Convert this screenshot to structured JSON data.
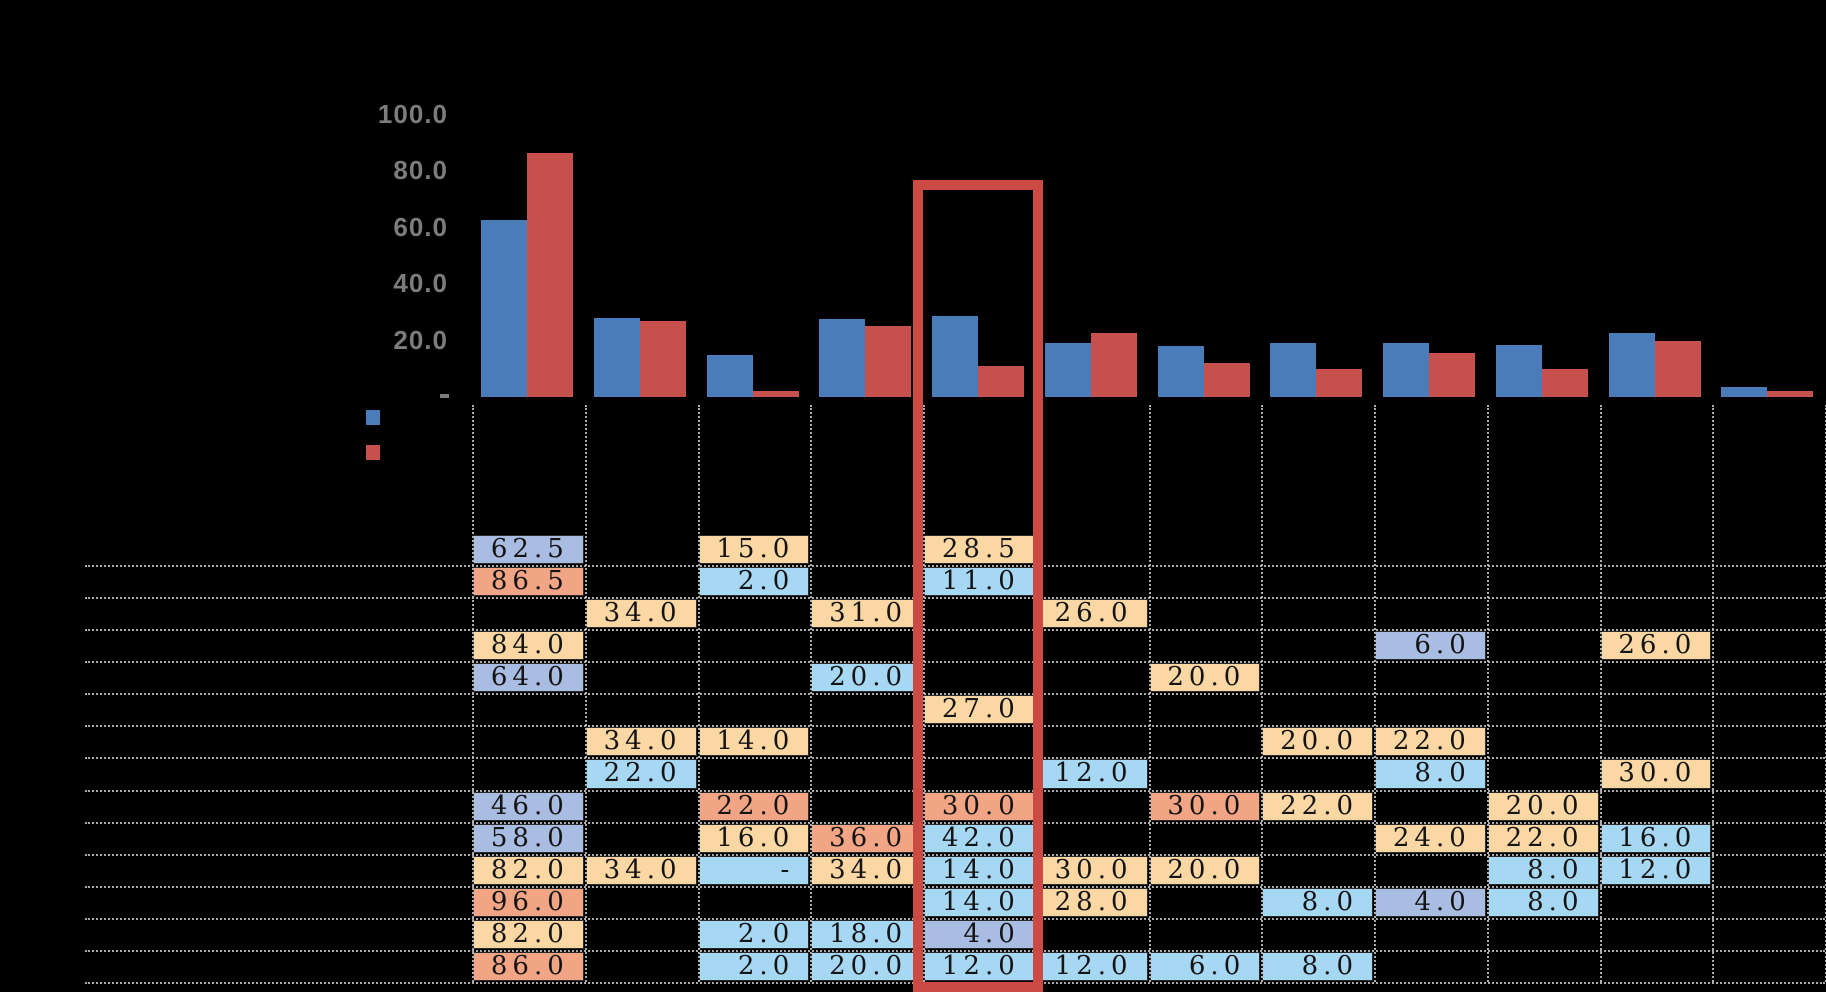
{
  "chart_data": {
    "type": "bar",
    "title": "",
    "categories": [
      "",
      "",
      "",
      "",
      "",
      "",
      "",
      "",
      "",
      "",
      "",
      ""
    ],
    "series": [
      {
        "name": "series-blue",
        "color": "#4b7cba",
        "values": [
          62.5,
          28.0,
          15.0,
          27.5,
          28.5,
          19.0,
          18.0,
          19.0,
          19.0,
          18.5,
          22.5,
          3.5
        ]
      },
      {
        "name": "series-red",
        "color": "#c6504d",
        "values": [
          86.5,
          27.0,
          2.0,
          25.0,
          11.0,
          22.5,
          12.0,
          10.0,
          15.5,
          10.0,
          20.0,
          2.0
        ]
      }
    ],
    "ylim": [
      0,
      100
    ],
    "y_ticks": [
      100,
      80,
      60,
      40,
      20
    ],
    "y_tick_labels": [
      "100.0",
      "80.0",
      "60.0",
      "40.0",
      "20.0"
    ],
    "zero_tick_label": "-",
    "grid": false,
    "legend_position": "left-below-axis",
    "highlighted_category_index": 4,
    "highlight_color": "#cb4a43"
  },
  "legend": {
    "items": [
      {
        "name": "blue-series-swatch",
        "color": "#4b7cba",
        "label": ""
      },
      {
        "name": "red-series-swatch",
        "color": "#c6504d",
        "label": ""
      }
    ]
  },
  "table": {
    "n_rows": 14,
    "n_cols": 12,
    "palette": {
      "periwinkle": "#a9bce2",
      "salmon": "#f2a585",
      "orange": "#fbd7a3",
      "sky": "#a6d7f3"
    },
    "cells": [
      {
        "r": 0,
        "c": 0,
        "v": "62.5",
        "k": "periwinkle"
      },
      {
        "r": 0,
        "c": 2,
        "v": "15.0",
        "k": "orange"
      },
      {
        "r": 0,
        "c": 4,
        "v": "28.5",
        "k": "orange"
      },
      {
        "r": 1,
        "c": 0,
        "v": "86.5",
        "k": "salmon"
      },
      {
        "r": 1,
        "c": 2,
        "v": "2.0",
        "k": "sky"
      },
      {
        "r": 1,
        "c": 4,
        "v": "11.0",
        "k": "sky"
      },
      {
        "r": 2,
        "c": 1,
        "v": "34.0",
        "k": "orange"
      },
      {
        "r": 2,
        "c": 3,
        "v": "31.0",
        "k": "orange"
      },
      {
        "r": 2,
        "c": 5,
        "v": "26.0",
        "k": "orange"
      },
      {
        "r": 3,
        "c": 0,
        "v": "84.0",
        "k": "orange"
      },
      {
        "r": 3,
        "c": 8,
        "v": "6.0",
        "k": "periwinkle"
      },
      {
        "r": 3,
        "c": 10,
        "v": "26.0",
        "k": "orange"
      },
      {
        "r": 4,
        "c": 0,
        "v": "64.0",
        "k": "periwinkle"
      },
      {
        "r": 4,
        "c": 3,
        "v": "20.0",
        "k": "sky"
      },
      {
        "r": 4,
        "c": 6,
        "v": "20.0",
        "k": "orange"
      },
      {
        "r": 5,
        "c": 4,
        "v": "27.0",
        "k": "orange"
      },
      {
        "r": 6,
        "c": 1,
        "v": "34.0",
        "k": "orange"
      },
      {
        "r": 6,
        "c": 2,
        "v": "14.0",
        "k": "orange"
      },
      {
        "r": 6,
        "c": 7,
        "v": "20.0",
        "k": "orange"
      },
      {
        "r": 6,
        "c": 8,
        "v": "22.0",
        "k": "orange"
      },
      {
        "r": 7,
        "c": 1,
        "v": "22.0",
        "k": "sky"
      },
      {
        "r": 7,
        "c": 5,
        "v": "12.0",
        "k": "sky"
      },
      {
        "r": 7,
        "c": 8,
        "v": "8.0",
        "k": "sky"
      },
      {
        "r": 7,
        "c": 10,
        "v": "30.0",
        "k": "orange"
      },
      {
        "r": 8,
        "c": 0,
        "v": "46.0",
        "k": "periwinkle"
      },
      {
        "r": 8,
        "c": 2,
        "v": "22.0",
        "k": "salmon"
      },
      {
        "r": 8,
        "c": 4,
        "v": "30.0",
        "k": "salmon"
      },
      {
        "r": 8,
        "c": 6,
        "v": "30.0",
        "k": "salmon"
      },
      {
        "r": 8,
        "c": 7,
        "v": "22.0",
        "k": "orange"
      },
      {
        "r": 8,
        "c": 9,
        "v": "20.0",
        "k": "orange"
      },
      {
        "r": 9,
        "c": 0,
        "v": "58.0",
        "k": "periwinkle"
      },
      {
        "r": 9,
        "c": 2,
        "v": "16.0",
        "k": "orange"
      },
      {
        "r": 9,
        "c": 3,
        "v": "36.0",
        "k": "salmon"
      },
      {
        "r": 9,
        "c": 4,
        "v": "42.0",
        "k": "sky"
      },
      {
        "r": 9,
        "c": 8,
        "v": "24.0",
        "k": "orange"
      },
      {
        "r": 9,
        "c": 9,
        "v": "22.0",
        "k": "orange"
      },
      {
        "r": 9,
        "c": 10,
        "v": "16.0",
        "k": "sky"
      },
      {
        "r": 10,
        "c": 0,
        "v": "82.0",
        "k": "orange"
      },
      {
        "r": 10,
        "c": 1,
        "v": "34.0",
        "k": "orange"
      },
      {
        "r": 10,
        "c": 2,
        "v": "-",
        "k": "sky"
      },
      {
        "r": 10,
        "c": 3,
        "v": "34.0",
        "k": "orange"
      },
      {
        "r": 10,
        "c": 4,
        "v": "14.0",
        "k": "sky"
      },
      {
        "r": 10,
        "c": 5,
        "v": "30.0",
        "k": "orange"
      },
      {
        "r": 10,
        "c": 6,
        "v": "20.0",
        "k": "orange"
      },
      {
        "r": 10,
        "c": 9,
        "v": "8.0",
        "k": "sky"
      },
      {
        "r": 10,
        "c": 10,
        "v": "12.0",
        "k": "sky"
      },
      {
        "r": 11,
        "c": 0,
        "v": "96.0",
        "k": "salmon"
      },
      {
        "r": 11,
        "c": 4,
        "v": "14.0",
        "k": "sky"
      },
      {
        "r": 11,
        "c": 5,
        "v": "28.0",
        "k": "orange"
      },
      {
        "r": 11,
        "c": 7,
        "v": "8.0",
        "k": "sky"
      },
      {
        "r": 11,
        "c": 8,
        "v": "4.0",
        "k": "periwinkle"
      },
      {
        "r": 11,
        "c": 9,
        "v": "8.0",
        "k": "sky"
      },
      {
        "r": 12,
        "c": 0,
        "v": "82.0",
        "k": "orange"
      },
      {
        "r": 12,
        "c": 2,
        "v": "2.0",
        "k": "sky"
      },
      {
        "r": 12,
        "c": 3,
        "v": "18.0",
        "k": "sky"
      },
      {
        "r": 12,
        "c": 4,
        "v": "4.0",
        "k": "periwinkle"
      },
      {
        "r": 13,
        "c": 0,
        "v": "86.0",
        "k": "salmon"
      },
      {
        "r": 13,
        "c": 2,
        "v": "2.0",
        "k": "sky"
      },
      {
        "r": 13,
        "c": 3,
        "v": "20.0",
        "k": "sky"
      },
      {
        "r": 13,
        "c": 4,
        "v": "12.0",
        "k": "sky"
      },
      {
        "r": 13,
        "c": 5,
        "v": "12.0",
        "k": "sky"
      },
      {
        "r": 13,
        "c": 6,
        "v": "6.0",
        "k": "sky"
      },
      {
        "r": 13,
        "c": 7,
        "v": "8.0",
        "k": "sky"
      }
    ]
  }
}
